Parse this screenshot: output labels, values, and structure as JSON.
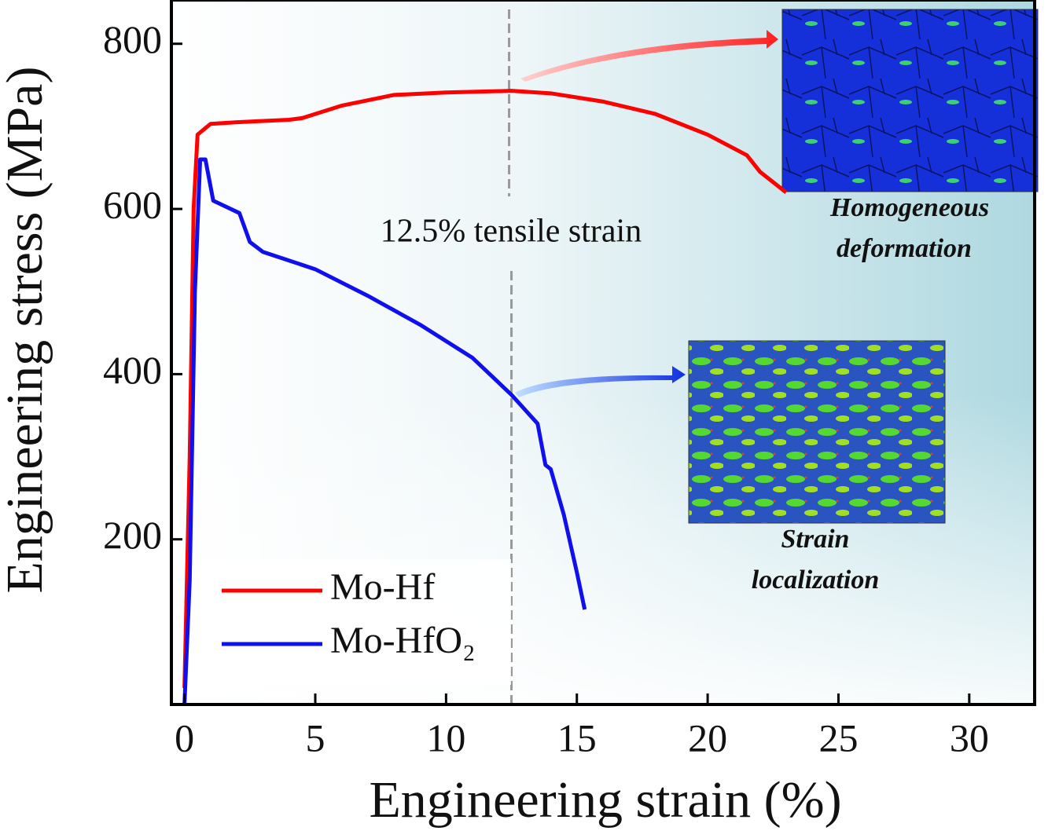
{
  "chart_data": {
    "type": "line",
    "x_label": "Engineering strain (%)",
    "y_label": "Engineering stress (MPa)",
    "xlim": [
      -0.5,
      32.5
    ],
    "ylim": [
      0,
      853
    ],
    "xticks": [
      0,
      5,
      10,
      15,
      20,
      25,
      30
    ],
    "yticks": [
      200,
      400,
      600,
      800
    ],
    "legend": "lower left",
    "series": [
      {
        "name": "Mo-Hf",
        "color": "#ff0000",
        "x": [
          0,
          0.2,
          0.35,
          0.5,
          1,
          2,
          4,
          4.5,
          6,
          8,
          10,
          12.5,
          14,
          16,
          18,
          20,
          21.5,
          22,
          23
        ],
        "values": [
          20,
          300,
          600,
          690,
          703,
          705,
          708,
          710,
          725,
          738,
          741,
          743,
          740,
          730,
          715,
          690,
          665,
          645,
          620
        ]
      },
      {
        "name": "Mo-HfO₂",
        "color": "#1010ee",
        "x": [
          0,
          0.2,
          0.4,
          0.6,
          0.8,
          1.1,
          2.1,
          2.5,
          3,
          5,
          7,
          9,
          11,
          12.5,
          13.5,
          13.8,
          14,
          14.5,
          15,
          15.3
        ],
        "values": [
          0,
          150,
          500,
          660,
          660,
          610,
          595,
          560,
          548,
          527,
          495,
          460,
          420,
          375,
          340,
          290,
          285,
          230,
          160,
          115
        ]
      }
    ],
    "reference_line": {
      "x": 12.5,
      "label": "12.5% tensile strain"
    },
    "inset_labels": [
      [
        "Homogeneous",
        "deformation"
      ],
      [
        "Strain",
        "localization"
      ]
    ]
  }
}
